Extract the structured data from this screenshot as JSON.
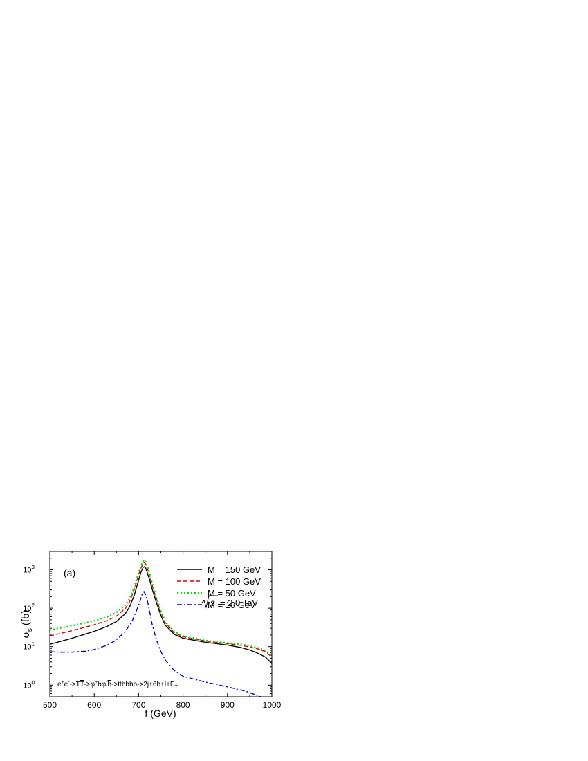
{
  "chart_data": {
    "type": "line",
    "panel_label": "(a)",
    "xlabel_main": "f",
    "xlabel_unit": "(GeV)",
    "ylabel_main": "σ",
    "ylabel_sub": "s",
    "ylabel_unit": "(fb)",
    "xlim": [
      500,
      1000
    ],
    "ylim": [
      0.5,
      3000
    ],
    "yscale": "log",
    "grid": false,
    "legend_position": "top-right",
    "x_ticks": [
      "500",
      "600",
      "700",
      "800",
      "900",
      "1000"
    ],
    "y_tick_mantissa": "10",
    "y_tick_exponents": [
      "0",
      "1",
      "2",
      "3"
    ],
    "energy_annotation": {
      "root": "s",
      "value": "= 2.0 TeV"
    },
    "process": {
      "p1": "e",
      "p1_sup": "+",
      "p2": "e",
      "p2_sup": "-",
      "arrow1": "->",
      "t": "T",
      "tbar": "T",
      "arrow2": "->",
      "phi1": "φ",
      "phi1_sup": "+",
      "b1": "b",
      "phi2": "φ",
      "phi2_sup": "-",
      "b2": "b",
      "arrow3": "->",
      "chain": "tt",
      "bbs": "bbbb",
      "arrow4": "->",
      "final": "2j+6b+l+E",
      "final_sub": "T"
    },
    "series": [
      {
        "name": "M = 150 GeV",
        "color": "#000000",
        "dash": "solid",
        "x": [
          500,
          550,
          600,
          630,
          650,
          670,
          680,
          690,
          700,
          705,
          710,
          713,
          716,
          720,
          725,
          730,
          740,
          750,
          760,
          780,
          800,
          850,
          900,
          930,
          950,
          970,
          985,
          995,
          1000
        ],
        "y": [
          11.5,
          16.5,
          25,
          34,
          45,
          72,
          110,
          215,
          540,
          850,
          1150,
          1200,
          1100,
          800,
          540,
          330,
          140,
          65,
          36,
          21,
          16.5,
          13,
          11,
          9.5,
          8.2,
          6.6,
          5.4,
          4.2,
          3.6
        ]
      },
      {
        "name": "M = 100 GeV",
        "color": "#e00000",
        "dash": "dashed",
        "x": [
          500,
          550,
          600,
          630,
          650,
          670,
          680,
          690,
          700,
          705,
          710,
          713,
          716,
          720,
          725,
          730,
          740,
          750,
          760,
          780,
          800,
          850,
          900,
          930,
          950,
          970,
          985,
          995,
          1000
        ],
        "y": [
          19,
          26,
          37,
          48,
          62,
          98,
          150,
          300,
          750,
          1100,
          1450,
          1550,
          1400,
          1050,
          700,
          420,
          175,
          78,
          42,
          23,
          18,
          14,
          12,
          10.8,
          9.8,
          8.6,
          7.4,
          6,
          5
        ]
      },
      {
        "name": "M = 50 GeV",
        "color": "#00dd00",
        "dash": "dotted",
        "x": [
          500,
          550,
          600,
          630,
          650,
          670,
          680,
          690,
          700,
          705,
          710,
          713,
          716,
          720,
          725,
          730,
          740,
          750,
          760,
          780,
          800,
          850,
          900,
          930,
          950,
          970,
          985,
          995,
          1000
        ],
        "y": [
          27,
          35,
          47,
          60,
          78,
          120,
          180,
          350,
          850,
          1250,
          1650,
          1800,
          1600,
          1200,
          790,
          470,
          190,
          85,
          45,
          25,
          19,
          14.5,
          12.5,
          11.5,
          10.5,
          9.2,
          8,
          6.5,
          5.5
        ]
      },
      {
        "name": "M = 10 GeV",
        "color": "#0000cc",
        "dash": "dashdot",
        "x": [
          500,
          520,
          550,
          580,
          600,
          630,
          650,
          670,
          685,
          695,
          703,
          708,
          712,
          716,
          720,
          725,
          730,
          740,
          750,
          760,
          780,
          800,
          850,
          900,
          940,
          960,
          975
        ],
        "y": [
          7.4,
          7.2,
          7.2,
          7.6,
          8.4,
          11,
          15,
          25,
          45,
          85,
          150,
          230,
          270,
          220,
          150,
          80,
          40,
          15,
          7.5,
          4.5,
          2.4,
          1.7,
          1.2,
          0.9,
          0.7,
          0.58,
          0.5
        ]
      }
    ]
  }
}
